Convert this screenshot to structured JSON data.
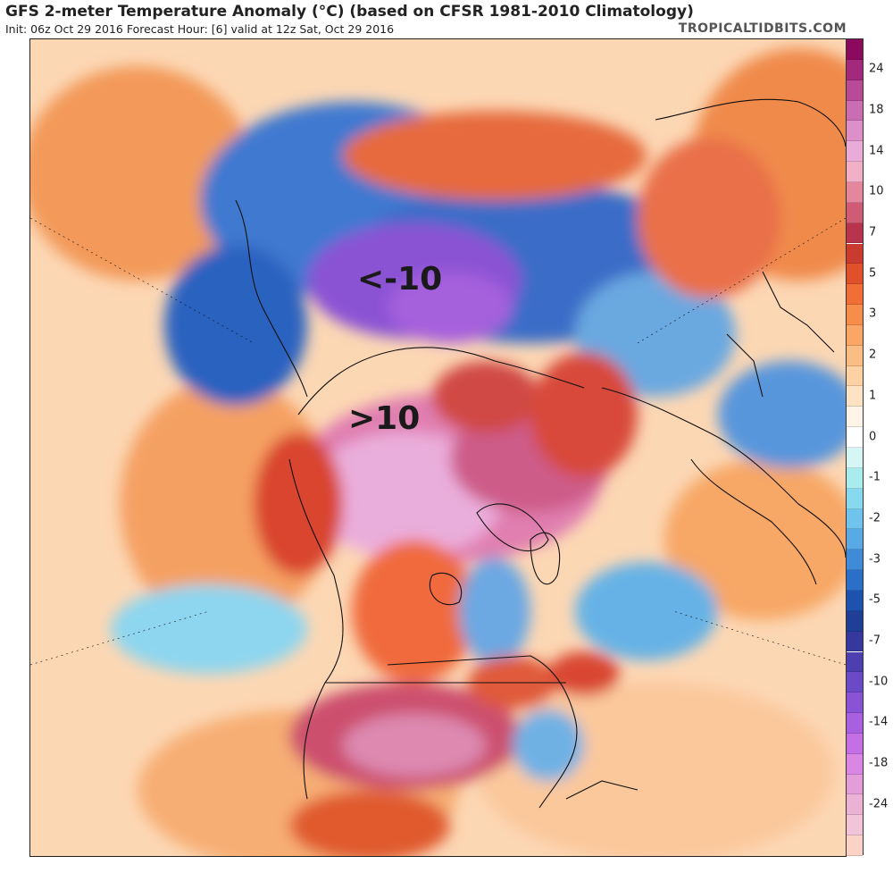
{
  "header": {
    "title": "GFS 2-meter Temperature Anomaly (°C) (based on CFSR 1981-2010 Climatology)",
    "subtitle": "Init: 06z Oct 29 2016   Forecast Hour: [6]   valid at 12z Sat, Oct 29 2016",
    "source": "TROPICALTIDBITS.COM"
  },
  "annotations": {
    "cold": "<-10",
    "warm": ">10"
  },
  "colorbar": {
    "segments": [
      {
        "label": "",
        "color": "#8b0a5e"
      },
      {
        "label": "24",
        "color": "#a3297c"
      },
      {
        "label": "",
        "color": "#b94a98"
      },
      {
        "label": "18",
        "color": "#cb6db2"
      },
      {
        "label": "",
        "color": "#dc8fc8"
      },
      {
        "label": "14",
        "color": "#e9acd9"
      },
      {
        "label": "",
        "color": "#f0b0c8"
      },
      {
        "label": "10",
        "color": "#e4869e"
      },
      {
        "label": "",
        "color": "#cf5b74"
      },
      {
        "label": "7",
        "color": "#b8334e"
      },
      {
        "label": "",
        "color": "#c83b2e"
      },
      {
        "label": "5",
        "color": "#e0502a"
      },
      {
        "label": "",
        "color": "#ef6f36"
      },
      {
        "label": "3",
        "color": "#f78d4b"
      },
      {
        "label": "",
        "color": "#f9a666"
      },
      {
        "label": "2",
        "color": "#fbbd84"
      },
      {
        "label": "",
        "color": "#fcd1a3"
      },
      {
        "label": "1",
        "color": "#fde3c4"
      },
      {
        "label": "",
        "color": "#fff4e8"
      },
      {
        "label": "0",
        "color": "#ffffff"
      },
      {
        "label": "",
        "color": "#d6f6f6"
      },
      {
        "label": "-1",
        "color": "#a8ecee"
      },
      {
        "label": "",
        "color": "#86d9ef"
      },
      {
        "label": "-2",
        "color": "#6fc3ec"
      },
      {
        "label": "",
        "color": "#58a9e4"
      },
      {
        "label": "-3",
        "color": "#3f8bd8"
      },
      {
        "label": "",
        "color": "#2b6fc8"
      },
      {
        "label": "-5",
        "color": "#1d53ae"
      },
      {
        "label": "",
        "color": "#1f3f96"
      },
      {
        "label": "-7",
        "color": "#35389c"
      },
      {
        "label": "",
        "color": "#4e3fb0"
      },
      {
        "label": "-10",
        "color": "#6a4ac6"
      },
      {
        "label": "",
        "color": "#8a53d6"
      },
      {
        "label": "-14",
        "color": "#a860e0"
      },
      {
        "label": "",
        "color": "#c470e4"
      },
      {
        "label": "-18",
        "color": "#d986e4"
      },
      {
        "label": "",
        "color": "#e39ed9"
      },
      {
        "label": "-24",
        "color": "#ebb2d6"
      },
      {
        "label": "",
        "color": "#f2c4d9"
      },
      {
        "label": "",
        "color": "#fbd3c6"
      }
    ]
  }
}
